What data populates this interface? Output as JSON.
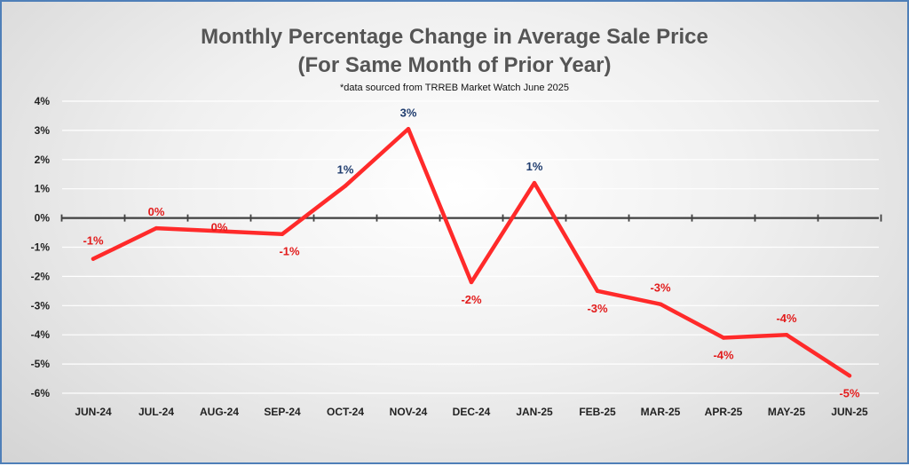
{
  "chart_data": {
    "type": "line",
    "title_line1": "Monthly Percentage Change in Average Sale Price",
    "title_line2": "(For Same Month of Prior Year)",
    "note": "*data sourced from TRREB Market Watch June 2025",
    "categories": [
      "JUN-24",
      "JUL-24",
      "AUG-24",
      "SEP-24",
      "OCT-24",
      "NOV-24",
      "DEC-24",
      "JAN-25",
      "FEB-25",
      "MAR-25",
      "APR-25",
      "MAY-25",
      "JUN-25"
    ],
    "series": [
      {
        "name": "Monthly Percentage Change",
        "values": [
          -1.4,
          -0.35,
          -0.45,
          -0.55,
          1.1,
          3.05,
          -2.2,
          1.2,
          -2.5,
          -2.95,
          -4.1,
          -4.0,
          -5.4
        ],
        "labels": [
          "-1%",
          "0%",
          "0%",
          "-1%",
          "1%",
          "3%",
          "-2%",
          "1%",
          "-3%",
          "-3%",
          "-4%",
          "-4%",
          "-5%"
        ]
      }
    ],
    "y_ticks": [
      "4%",
      "3%",
      "2%",
      "1%",
      "0%",
      "-1%",
      "-2%",
      "-3%",
      "-4%",
      "-5%",
      "-6%"
    ],
    "ylim": [
      -6,
      4
    ],
    "grid": true,
    "colors": {
      "line": "#ff2a2a",
      "positive_label": "#1f3c6e",
      "negative_label": "#e21b1b",
      "axis": "#404040",
      "grid": "#ffffff"
    }
  }
}
